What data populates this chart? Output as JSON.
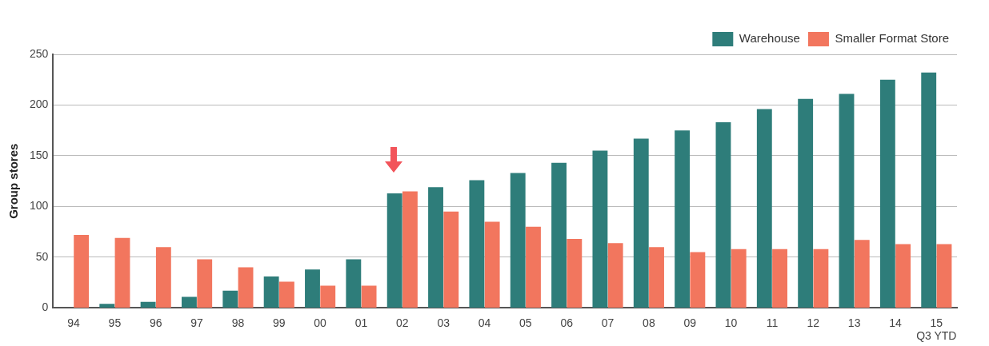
{
  "chart_data": {
    "type": "bar",
    "ylabel": "Group stores",
    "categories": [
      "94",
      "95",
      "96",
      "97",
      "98",
      "99",
      "00",
      "01",
      "02",
      "03",
      "04",
      "05",
      "06",
      "07",
      "08",
      "09",
      "10",
      "11",
      "12",
      "13",
      "14",
      "15\nQ3 YTD"
    ],
    "series": [
      {
        "name": "Warehouse",
        "color": "#2e7d7a",
        "values": [
          0,
          4,
          6,
          11,
          17,
          31,
          38,
          48,
          113,
          119,
          126,
          133,
          143,
          155,
          167,
          175,
          183,
          196,
          206,
          211,
          225,
          232
        ]
      },
      {
        "name": "Smaller Format Store",
        "color": "#f2765e",
        "values": [
          72,
          69,
          60,
          48,
          40,
          26,
          22,
          22,
          115,
          95,
          85,
          80,
          68,
          64,
          60,
          55,
          58,
          58,
          58,
          67,
          63,
          63
        ]
      }
    ],
    "ylim": [
      0,
      250
    ],
    "yticks": [
      0,
      50,
      100,
      150,
      200,
      250
    ],
    "grid": "y",
    "legend": "top right"
  }
}
